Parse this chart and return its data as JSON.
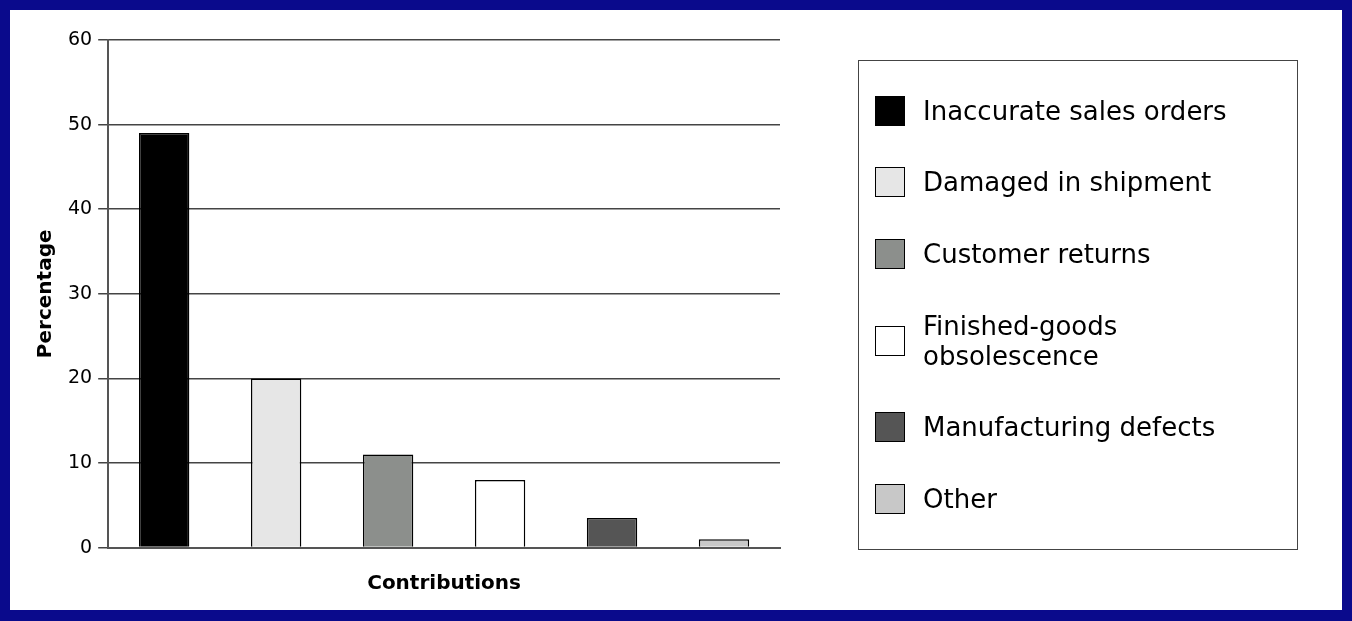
{
  "chart_data": {
    "type": "bar",
    "xlabel": "Contributions",
    "ylabel": "Percentage",
    "categories": [
      null,
      null,
      null,
      null,
      null,
      null
    ],
    "series": [
      {
        "name": "Inaccurate sales orders",
        "color": "#000000",
        "values": [
          49,
          null,
          null,
          null,
          null,
          null
        ]
      },
      {
        "name": "Damaged in shipment",
        "color": "#e6e6e6",
        "values": [
          null,
          20,
          null,
          null,
          null,
          null
        ]
      },
      {
        "name": "Customer returns",
        "color": "#8c8f8c",
        "values": [
          null,
          null,
          11,
          null,
          null,
          null
        ]
      },
      {
        "name": "Finished-goods obsolescence",
        "color": "#ffffff",
        "values": [
          null,
          null,
          null,
          8,
          null,
          null
        ]
      },
      {
        "name": "Manufacturing defects",
        "color": "#555555",
        "values": [
          null,
          null,
          null,
          null,
          3.5,
          null
        ]
      },
      {
        "name": "Other",
        "color": "#c8c8c8",
        "values": [
          null,
          null,
          null,
          null,
          null,
          1
        ]
      }
    ],
    "ylim": [
      0,
      60
    ],
    "yticks": [
      0,
      10,
      20,
      30,
      40,
      50,
      60
    ],
    "grid": "y",
    "legend": "right"
  }
}
